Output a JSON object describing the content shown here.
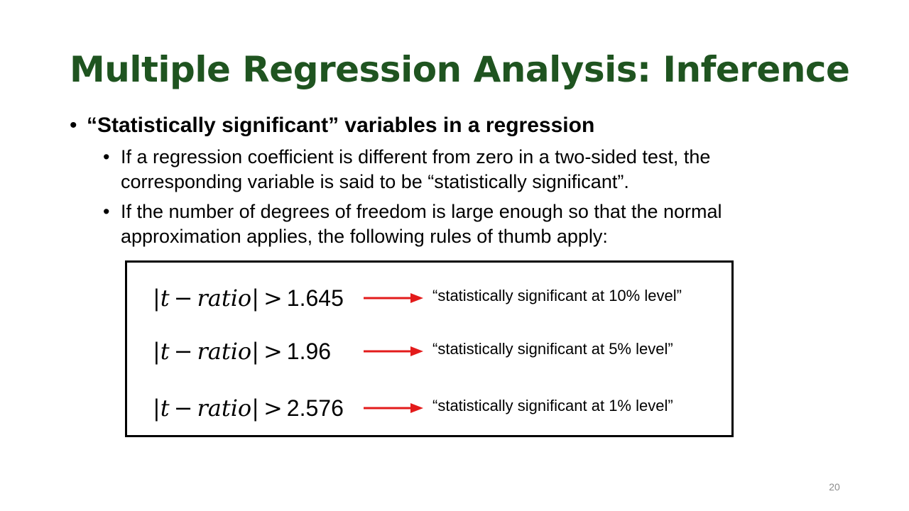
{
  "slide": {
    "title": "Multiple Regression Analysis: Inference",
    "page_number": "20",
    "title_color": "#1f5420",
    "arrow_color": "#e31b1b"
  },
  "bullets": {
    "main": "“Statistically significant” variables in a regression",
    "sub": [
      "If a regression coefficient is different from zero in a two-sided test, the corresponding variable is said to be “statistically significant”.",
      "If the number of degrees of freedom is large enough so that the normal approximation applies, the following rules of thumb apply:"
    ]
  },
  "rules": [
    {
      "variable": "t",
      "minus": "−",
      "ratio": "ratio",
      "operator": ">",
      "threshold": "1.645",
      "label": "“statistically significant at 10% level”"
    },
    {
      "variable": "t",
      "minus": "−",
      "ratio": "ratio",
      "operator": ">",
      "threshold": "1.96",
      "label": "“statistically significant at 5% level”"
    },
    {
      "variable": "t",
      "minus": "−",
      "ratio": "ratio",
      "operator": ">",
      "threshold": "2.576",
      "label": "“statistically significant at 1% level”"
    }
  ]
}
